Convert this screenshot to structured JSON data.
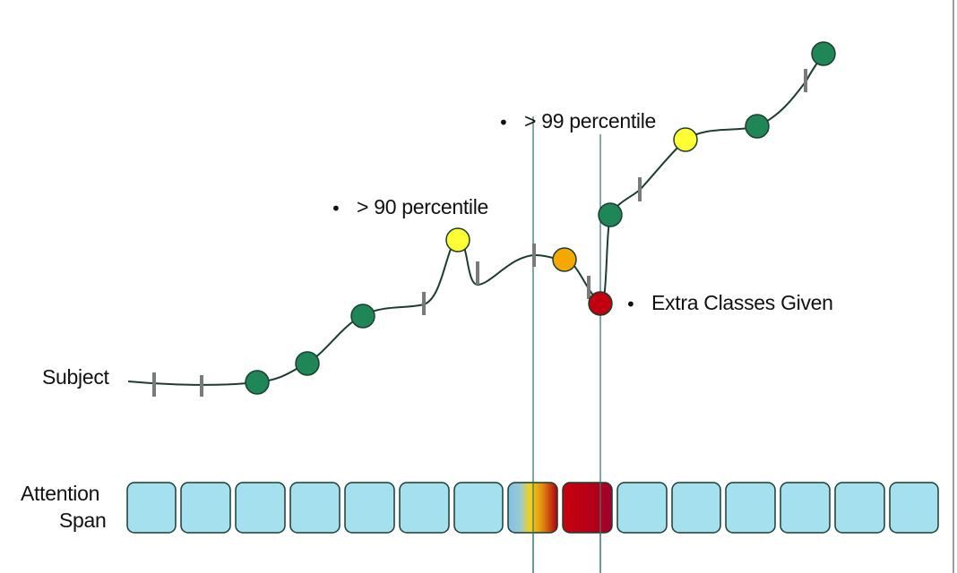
{
  "labels": {
    "subject": "Subject",
    "attention_line1": "Attention",
    "attention_line2": "Span",
    "p90": "> 90 percentile",
    "p99": "> 99 percentile",
    "extra": "Extra Classes Given",
    "bullet": "•"
  },
  "colors": {
    "curve": "#1c3d30",
    "tick": "#7a7a7a",
    "dot_green": "#1f8757",
    "dot_yellow": "#ffff33",
    "dot_orange": "#f5a800",
    "dot_red": "#c00010",
    "cell_fill": "#a4e0ee",
    "cell_stroke": "#1c3d30",
    "guide_line": "#3b7a72"
  },
  "attention_cells": {
    "count": 15,
    "gradient_cell_index": 7,
    "red_cell_index": 8
  },
  "markers": [
    {
      "color": "dot_green"
    },
    {
      "color": "dot_green"
    },
    {
      "color": "dot_green"
    },
    {
      "color": "dot_yellow"
    },
    {
      "color": "dot_orange"
    },
    {
      "color": "dot_red"
    },
    {
      "color": "dot_green"
    },
    {
      "color": "dot_yellow"
    },
    {
      "color": "dot_green"
    },
    {
      "color": "dot_green"
    }
  ]
}
